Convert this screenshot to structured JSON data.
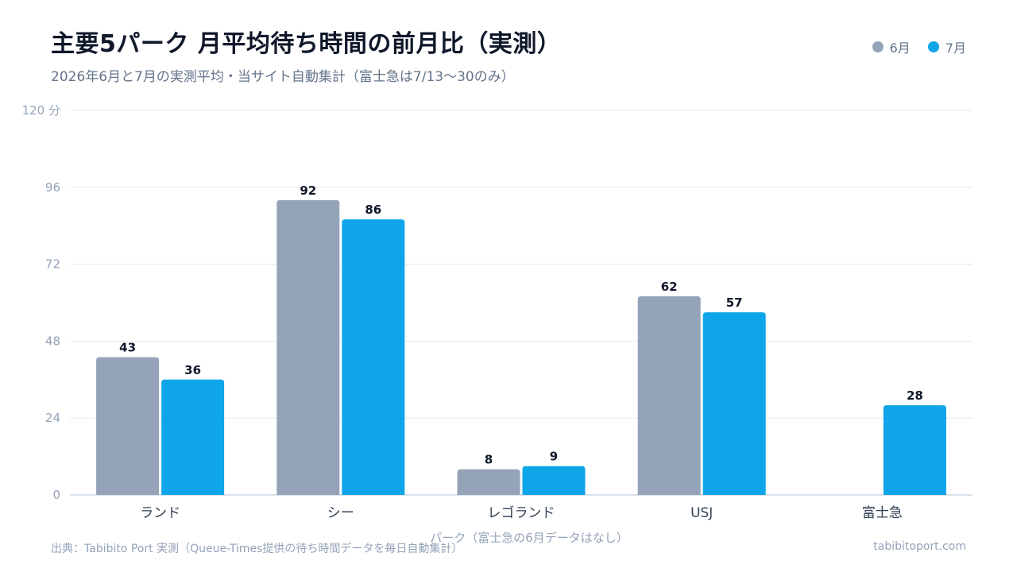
{
  "header": {
    "title": "主要5パーク 月平均待ち時間の前月比（実測）",
    "subtitle": "2026年6月と7月の実測平均・当サイト自動集計（富士急は7/13〜30のみ）"
  },
  "legend": [
    {
      "label": "6月",
      "color": "#94a3b8"
    },
    {
      "label": "7月",
      "color": "#0ea5e9"
    }
  ],
  "chart_data": {
    "type": "bar",
    "title": "主要5パーク 月平均待ち時間の前月比（実測）",
    "categories": [
      "ランド",
      "シー",
      "レゴランド",
      "USJ",
      "富士急"
    ],
    "series": [
      {
        "name": "6月",
        "color": "#94a3b8",
        "values": [
          43,
          92,
          8,
          62,
          null
        ]
      },
      {
        "name": "7月",
        "color": "#0ea5e9",
        "values": [
          36,
          86,
          9,
          57,
          28
        ]
      }
    ],
    "xlabel": "パーク（富士急の6月データはなし）",
    "ylabel": "",
    "y_unit": "分",
    "ylim": [
      0,
      120
    ],
    "yticks": [
      0,
      24,
      48,
      72,
      96,
      120
    ],
    "ytick_labels": [
      "0",
      "24",
      "48",
      "72",
      "96",
      "120 分"
    ],
    "grid": true,
    "legend_position": "top-right"
  },
  "footer": {
    "source": "出典：Tabibito Port 実測（Queue-Times提供の待ち時間データを毎日自動集計）",
    "site": "tabibitoport.com"
  }
}
